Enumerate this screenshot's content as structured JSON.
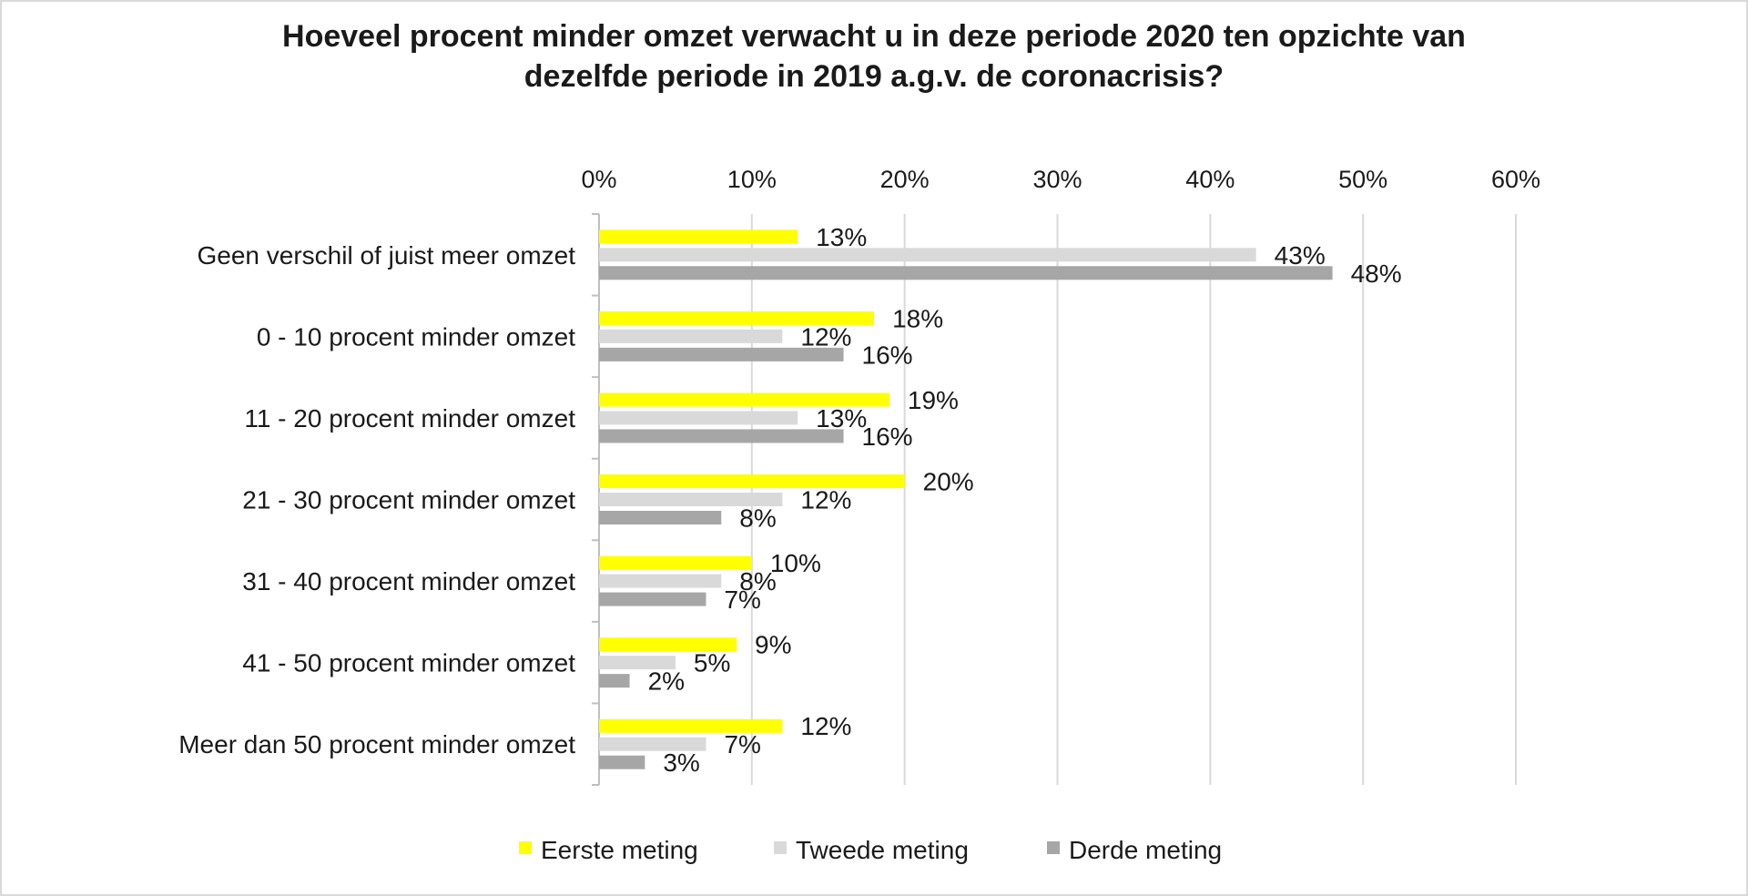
{
  "chart_data": {
    "type": "bar",
    "orientation": "horizontal",
    "title_lines": [
      "Hoeveel procent minder omzet verwacht u in deze periode 2020 ten opzichte van",
      "dezelfde periode in 2019 a.g.v. de coronacrisis?"
    ],
    "categories": [
      "Geen verschil of juist meer omzet",
      "0 - 10 procent minder omzet",
      "11 - 20 procent minder omzet",
      "21 - 30 procent minder omzet",
      "31 - 40 procent minder omzet",
      "41 - 50 procent minder omzet",
      "Meer dan 50 procent minder omzet"
    ],
    "series": [
      {
        "name": "Eerste meting",
        "color": "#ffff00",
        "values": [
          13,
          18,
          19,
          20,
          10,
          9,
          12
        ]
      },
      {
        "name": "Tweede meting",
        "color": "#d9d9d9",
        "values": [
          43,
          12,
          13,
          12,
          8,
          5,
          7
        ]
      },
      {
        "name": "Derde meting",
        "color": "#a6a6a6",
        "values": [
          48,
          16,
          16,
          8,
          7,
          2,
          3
        ]
      }
    ],
    "xlim": [
      0,
      60
    ],
    "xticks": [
      "0%",
      "10%",
      "20%",
      "30%",
      "40%",
      "50%",
      "60%"
    ],
    "value_suffix": "%",
    "axis_position": "top",
    "grid": true,
    "legend_position": "bottom"
  }
}
